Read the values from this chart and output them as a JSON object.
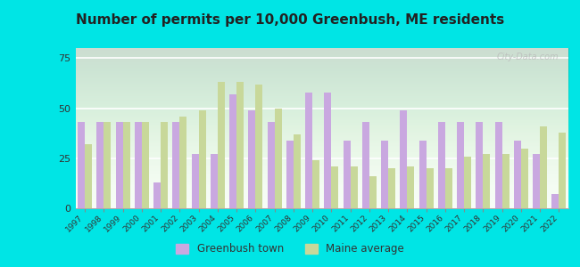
{
  "title": "Number of permits per 10,000 Greenbush, ME residents",
  "years": [
    1997,
    1998,
    1999,
    2000,
    2001,
    2002,
    2003,
    2004,
    2005,
    2006,
    2007,
    2008,
    2009,
    2010,
    2011,
    2012,
    2013,
    2014,
    2015,
    2016,
    2017,
    2018,
    2019,
    2020,
    2021,
    2022
  ],
  "greenbush": [
    43,
    43,
    43,
    43,
    13,
    43,
    27,
    27,
    57,
    49,
    43,
    34,
    58,
    58,
    34,
    43,
    34,
    49,
    34,
    43,
    43,
    43,
    43,
    34,
    27,
    7
  ],
  "maine": [
    32,
    43,
    43,
    43,
    43,
    46,
    49,
    63,
    63,
    62,
    50,
    37,
    24,
    21,
    21,
    16,
    20,
    21,
    20,
    20,
    26,
    27,
    27,
    30,
    41,
    38
  ],
  "bar_color_greenbush": "#c9a8e0",
  "bar_color_maine": "#c8d89a",
  "background_color_outer": "#00e5e5",
  "background_color_plot_top": "#e8f5e8",
  "background_color_plot_bot": "#f8fef8",
  "title_fontsize": 11,
  "ylim": [
    0,
    80
  ],
  "yticks": [
    0,
    25,
    50,
    75
  ],
  "legend_greenbush": "Greenbush town",
  "legend_maine": "Maine average"
}
